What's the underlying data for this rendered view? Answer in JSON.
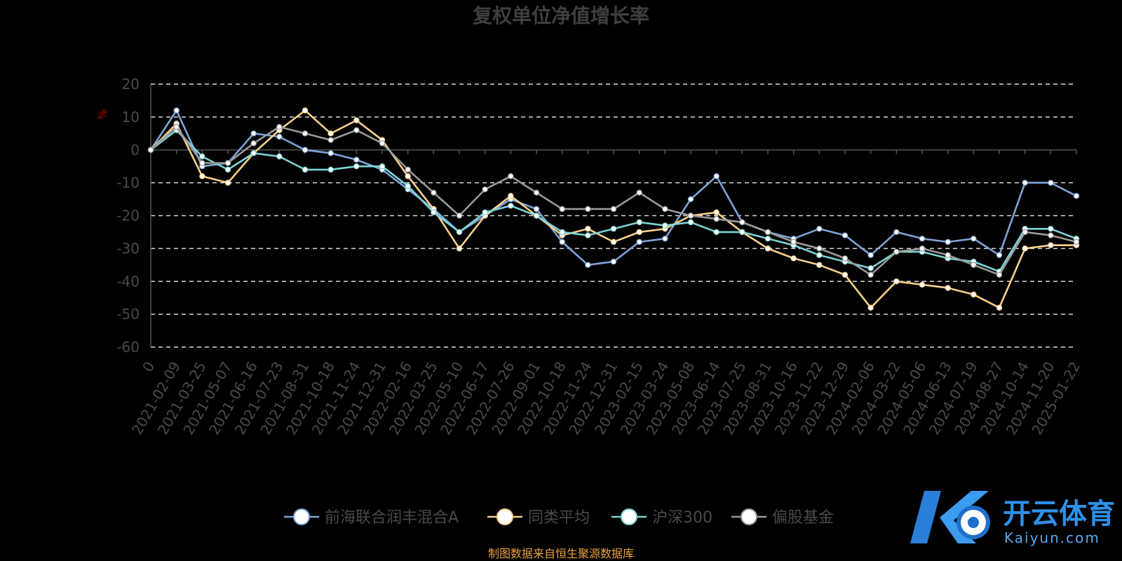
{
  "chart_data": {
    "type": "line",
    "title": "复权单位净值增长率",
    "ylabel": "%",
    "ylim": [
      -60,
      20
    ],
    "yticks": [
      "20",
      "10",
      "0",
      "-10",
      "-20",
      "-30",
      "-40",
      "-50",
      "-60"
    ],
    "grid": true,
    "legend_position": "bottom",
    "x": [
      "0",
      "2021-02-09",
      "2021-03-25",
      "2021-05-07",
      "2021-06-16",
      "2021-07-23",
      "2021-08-31",
      "2021-10-18",
      "2021-11-24",
      "2021-12-31",
      "2022-02-16",
      "2022-03-25",
      "2022-05-10",
      "2022-06-17",
      "2022-07-26",
      "2022-09-01",
      "2022-10-18",
      "2022-11-24",
      "2022-12-31",
      "2023-02-15",
      "2023-03-24",
      "2023-05-08",
      "2023-06-14",
      "2023-07-25",
      "2023-08-31",
      "2023-10-16",
      "2023-11-22",
      "2023-12-29",
      "2024-02-06",
      "2024-03-22",
      "2024-05-06",
      "2024-06-13",
      "2024-07-19",
      "2024-08-27",
      "2024-10-14",
      "2024-11-20",
      "2025-01-22"
    ],
    "series": [
      {
        "name": "前海联合润丰混合A",
        "color": "#7ea4d8",
        "values": [
          0,
          12,
          -5,
          -4,
          5,
          4,
          0,
          -1,
          -3,
          -6,
          -12,
          -18,
          -25,
          -20,
          -15,
          -18,
          -28,
          -35,
          -34,
          -28,
          -27,
          -15,
          -8,
          -22,
          -25,
          -27,
          -24,
          -26,
          -32,
          -25,
          -27,
          -28,
          -27,
          -32,
          -10,
          -10,
          -14
        ]
      },
      {
        "name": "同类平均",
        "color": "#f7d08a",
        "values": [
          0,
          8,
          -8,
          -10,
          -1,
          6,
          12,
          5,
          9,
          3,
          -8,
          -18,
          -30,
          -20,
          -14,
          -20,
          -26,
          -24,
          -28,
          -25,
          -24,
          -20,
          -19,
          -25,
          -30,
          -33,
          -35,
          -38,
          -48,
          -40,
          -41,
          -42,
          -44,
          -48,
          -30,
          -29,
          -29
        ]
      },
      {
        "name": "沪深300",
        "color": "#7dd3d6",
        "values": [
          0,
          6,
          -2,
          -6,
          -1,
          -2,
          -6,
          -6,
          -5,
          -5,
          -11,
          -19,
          -25,
          -19,
          -17,
          -20,
          -25,
          -26,
          -24,
          -22,
          -23,
          -22,
          -25,
          -25,
          -27,
          -29,
          -32,
          -34,
          -36,
          -31,
          -31,
          -33,
          -34,
          -37,
          -24,
          -24,
          -27
        ]
      },
      {
        "name": "偏股基金",
        "color": "#9a9a9a",
        "values": [
          0,
          7,
          -4,
          -4,
          2,
          7,
          5,
          3,
          6,
          2,
          -6,
          -13,
          -20,
          -12,
          -8,
          -13,
          -18,
          -18,
          -18,
          -13,
          -18,
          -20,
          -21,
          -22,
          -25,
          -28,
          -30,
          -33,
          -38,
          -31,
          -30,
          -32,
          -35,
          -38,
          -25,
          -26,
          -28
        ]
      }
    ]
  },
  "source_note": "制图数据来自恒生聚源数据库",
  "watermark": {
    "brand": "开云体育",
    "site": "Kaiyun.com"
  }
}
